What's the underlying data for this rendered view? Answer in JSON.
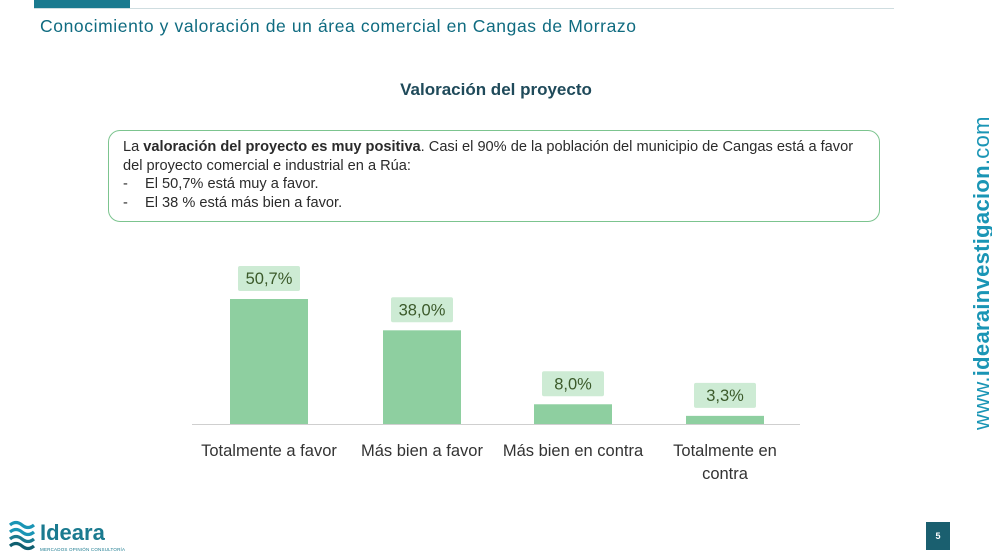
{
  "header": {
    "title": "Conocimiento y valoración de un área comercial en Cangas de Morrazo"
  },
  "section_title": "Valoración del proyecto",
  "summary": {
    "intro_plain": "La ",
    "intro_bold": "valoración del proyecto es muy positiva",
    "intro_rest": ". Casi el 90% de la población del municipio de Cangas está a favor del proyecto comercial e industrial en a Rúa:",
    "bullets": [
      "El 50,7% está muy a favor.",
      "El 38 % está más bien a favor."
    ],
    "bullet_marker": "-"
  },
  "chart_data": {
    "type": "bar",
    "categories": [
      [
        "Totalmente a favor"
      ],
      [
        "Más bien a favor"
      ],
      [
        "Más bien en contra"
      ],
      [
        "Totalmente en",
        "contra"
      ]
    ],
    "values": [
      50.7,
      38.0,
      8.0,
      3.3
    ],
    "data_labels": [
      "50,7%",
      "38,0%",
      "8,0%",
      "3,3%"
    ],
    "ylim": [
      0,
      50.7
    ],
    "grid": false,
    "colors": {
      "bar": "#8ecfa0",
      "label_bg": "#cdebd4",
      "label_text": "#3b5a2a",
      "axis": "#cfcfcf",
      "category_text": "#333333"
    }
  },
  "side_url": {
    "prefix": "www.",
    "bold": "idearainvestigacion",
    "suffix": ".com"
  },
  "footer": {
    "logo_icon": "ideara-waves-icon",
    "logo_name": "Ideara",
    "logo_tagline": "MERCADOS OPINIÓN CONSULTORÍA",
    "page_number": "5"
  },
  "colors": {
    "brand": "#1a7a8f",
    "url": "#1a95b5"
  }
}
